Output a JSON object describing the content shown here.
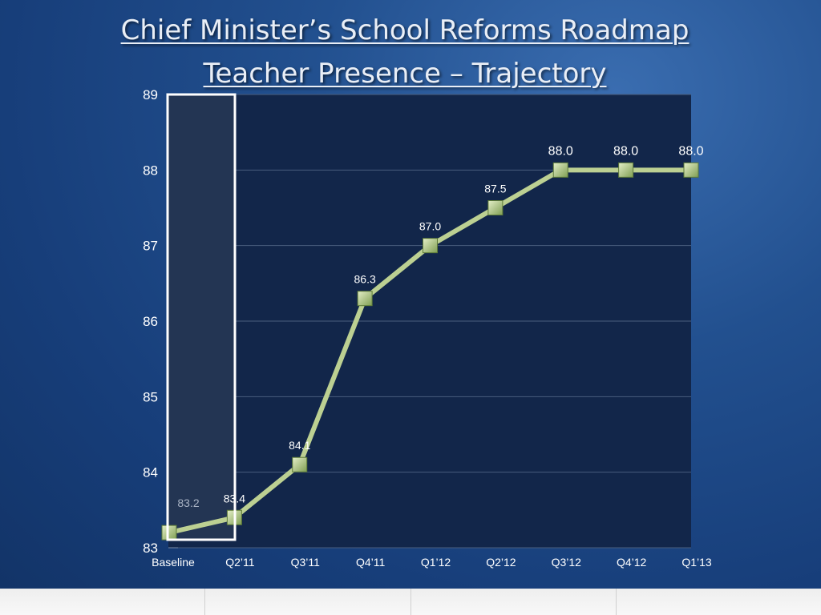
{
  "title_line1": "Chief Minister’s  School Reforms Roadmap",
  "title_line2": "Teacher Presence – Trajectory",
  "chart_data": {
    "type": "line",
    "categories": [
      "Baseline",
      "Q2’11",
      "Q3’11",
      "Q4’11",
      "Q1’12",
      "Q2’12",
      "Q3’12",
      "Q4’12",
      "Q1’13"
    ],
    "values": [
      83.2,
      83.4,
      84.1,
      86.3,
      87.0,
      87.5,
      88.0,
      88.0,
      88.0
    ],
    "data_labels": [
      "83.2",
      "83.4",
      "84.1",
      "86.3",
      "87.0",
      "87.5",
      "88.0",
      "88.0",
      "88.0"
    ],
    "y_ticks": [
      "83",
      "84",
      "85",
      "86",
      "87",
      "88",
      "89"
    ],
    "ylim": [
      83,
      89
    ],
    "grid": true,
    "line_color": "#bcd092",
    "marker_color": "#a6c27a",
    "plot_background": "#12264a",
    "highlighted_categories": [
      "Baseline",
      "Q2’11"
    ]
  }
}
